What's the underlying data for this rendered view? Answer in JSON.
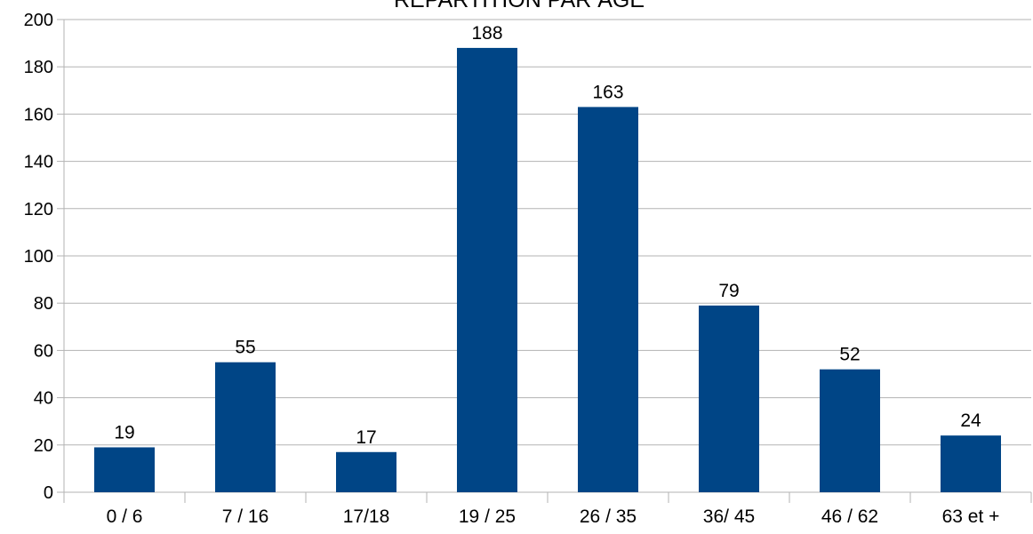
{
  "chart_data": {
    "type": "bar",
    "title": "RÉPARTITION PAR ÂGE",
    "xlabel": "",
    "ylabel": "",
    "categories": [
      "0 / 6",
      "7 / 16",
      "17/18",
      "19 / 25",
      "26 / 35",
      "36/ 45",
      "46 / 62",
      "63 et +"
    ],
    "values": [
      19,
      55,
      17,
      188,
      163,
      79,
      52,
      24
    ],
    "ylim": [
      0,
      200
    ],
    "yticks": [
      0,
      20,
      40,
      60,
      80,
      100,
      120,
      140,
      160,
      180,
      200
    ],
    "grid": true,
    "legend": "none",
    "data_labels": true,
    "colors": {
      "bar": "#004586",
      "grid": "#b3b3b3",
      "axis": "#b3b3b3",
      "text": "#000000"
    }
  }
}
